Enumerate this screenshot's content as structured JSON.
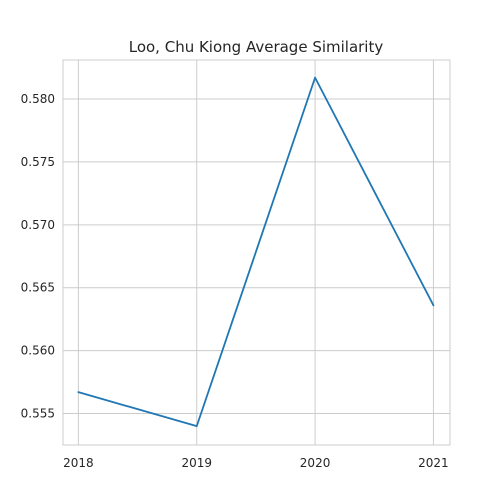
{
  "chart_data": {
    "type": "line",
    "title": "Loo, Chu Kiong Average Similarity",
    "xlabel": "",
    "ylabel": "",
    "x": [
      2018,
      2019,
      2020,
      2021
    ],
    "x_tick_labels": [
      "2018",
      "2019",
      "2020",
      "2021"
    ],
    "series": [
      {
        "values": [
          0.5567,
          0.554,
          0.5817,
          0.5636
        ]
      }
    ],
    "xlim": [
      2017.87,
      2021.14
    ],
    "ylim": [
      0.5525,
      0.5831
    ],
    "y_ticks": [
      0.555,
      0.56,
      0.565,
      0.57,
      0.575,
      0.58
    ],
    "y_tick_labels": [
      "0.555",
      "0.560",
      "0.565",
      "0.570",
      "0.575",
      "0.580"
    ],
    "grid": true,
    "colors": {
      "line": "#1f77b4",
      "grid": "#cccccc",
      "text": "#262626"
    }
  }
}
